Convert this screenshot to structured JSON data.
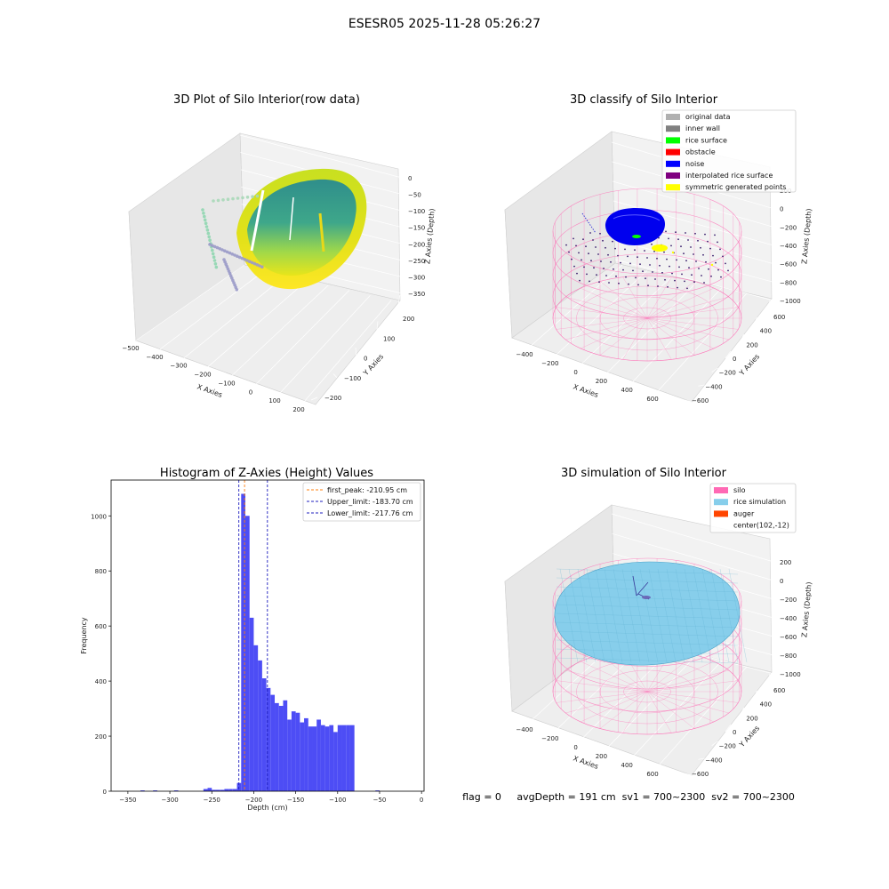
{
  "suptitle": "ESESR05 2025-11-28 05:26:27",
  "footer": "flag = 0     avgDepth = 191 cm  sv1 = 700~2300  sv2 = 700~2300",
  "colors": {
    "hist_bar": "#4d4df5",
    "first_peak": "#ff7f0e",
    "limit": "#1f1fbf",
    "silo_wire": "#ff69b4",
    "rice_sim": "#87ceeb",
    "auger": "#ff4500",
    "noise": "#0000ff",
    "rice_surface": "#00ff00",
    "obstacle": "#ff0000",
    "yellow": "#ffff00"
  },
  "p1": {
    "title": "3D Plot of Silo Interior(row data)",
    "xlabel": "X Axies",
    "ylabel": "Y Axies",
    "zlabel": "Z Axies (Depth)",
    "xticks": [
      "−500",
      "−400",
      "−300",
      "−200",
      "−100",
      "0",
      "100",
      "200"
    ],
    "yticks": [
      "200",
      "100",
      "0",
      "−100",
      "−200"
    ],
    "zticks": [
      "0",
      "−50",
      "−100",
      "−150",
      "−200",
      "−250",
      "−300",
      "−350"
    ]
  },
  "p2": {
    "title": "3D classify of Silo Interior",
    "xlabel": "X Axies",
    "ylabel": "Y Axies",
    "zlabel": "Z Axies (Depth)",
    "xticks": [
      "−400",
      "−200",
      "0",
      "200",
      "400",
      "600"
    ],
    "yticks": [
      "600",
      "400",
      "200",
      "0",
      "−200",
      "−400",
      "−600"
    ],
    "zticks": [
      "200",
      "0",
      "−200",
      "−400",
      "−600",
      "−800",
      "−1000"
    ],
    "legend": [
      {
        "label": "original data",
        "color": "#b0b0b0"
      },
      {
        "label": "inner wall",
        "color": "#808080"
      },
      {
        "label": "rice surface",
        "color": "#00ff00"
      },
      {
        "label": "obstacle",
        "color": "#ff0000"
      },
      {
        "label": "noise",
        "color": "#0000ff"
      },
      {
        "label": "interpolated rice surface",
        "color": "#800080"
      },
      {
        "label": "symmetric generated points",
        "color": "#ffff00"
      }
    ]
  },
  "p4": {
    "title": "3D simulation of Silo Interior",
    "xlabel": "X Axies",
    "ylabel": "Y Axies",
    "zlabel": "Z Axies (Depth)",
    "xticks": [
      "−400",
      "−200",
      "0",
      "200",
      "400",
      "600"
    ],
    "yticks": [
      "600",
      "400",
      "200",
      "0",
      "−200",
      "−400",
      "−600"
    ],
    "zticks": [
      "200",
      "0",
      "−200",
      "−400",
      "−600",
      "−800",
      "−1000"
    ],
    "legend": [
      {
        "label": "silo",
        "color": "#ff69b4"
      },
      {
        "label": "rice simulation",
        "color": "#87ceeb"
      },
      {
        "label": "auger",
        "color": "#ff4500"
      },
      {
        "label": "center(102,-12)",
        "color": ""
      }
    ]
  },
  "chart_data": [
    {
      "type": "scatter",
      "title": "3D Plot of Silo Interior(row data)",
      "xlabel": "X Axies",
      "ylabel": "Y Axies",
      "zlabel": "Z Axies (Depth)",
      "xlim": [
        -500,
        200
      ],
      "ylim": [
        -200,
        200
      ],
      "zlim": [
        -350,
        0
      ]
    },
    {
      "type": "scatter",
      "title": "3D classify of Silo Interior",
      "xlabel": "X Axies",
      "ylabel": "Y Axies",
      "zlabel": "Z Axies (Depth)",
      "xlim": [
        -400,
        600
      ],
      "ylim": [
        -600,
        600
      ],
      "zlim": [
        -1000,
        200
      ],
      "legend_loc": "upper right",
      "series": [
        {
          "name": "original data"
        },
        {
          "name": "inner wall"
        },
        {
          "name": "rice surface"
        },
        {
          "name": "obstacle"
        },
        {
          "name": "noise"
        },
        {
          "name": "interpolated rice surface"
        },
        {
          "name": "symmetric generated points"
        }
      ]
    },
    {
      "type": "bar",
      "title": "Histogram of Z-Axies (Height) Values",
      "xlabel": "Depth (cm)",
      "ylabel": "Frequency",
      "xlim": [
        -370,
        3
      ],
      "ylim": [
        0,
        1130
      ],
      "xticks": [
        -350,
        -300,
        -250,
        -200,
        -150,
        -100,
        -50,
        0
      ],
      "yticks": [
        0,
        200,
        400,
        600,
        800,
        1000
      ],
      "legend_loc": "upper right",
      "bin_edges": [
        -335,
        -330,
        -325,
        -320,
        -315,
        -310,
        -305,
        -300,
        -295,
        -290,
        -285,
        -280,
        -275,
        -270,
        -265,
        -260,
        -255,
        -250,
        -245,
        -240,
        -235,
        -230,
        -225,
        -220,
        -215,
        -210,
        -205,
        -200,
        -195,
        -190,
        -185,
        -180,
        -175,
        -170,
        -165,
        -160,
        -155,
        -150,
        -145,
        -140,
        -135,
        -130,
        -125,
        -120,
        -115,
        -110,
        -105,
        -100,
        -95,
        -90,
        -85,
        -80,
        -75,
        -70,
        -65,
        -60,
        -55,
        -50,
        -45,
        -40,
        -35,
        -30,
        -25,
        -20,
        -15,
        -10
      ],
      "values": [
        3,
        0,
        0,
        3,
        0,
        0,
        0,
        0,
        3,
        0,
        0,
        0,
        0,
        0,
        0,
        8,
        12,
        5,
        5,
        5,
        8,
        8,
        8,
        30,
        1080,
        1000,
        630,
        530,
        475,
        410,
        375,
        350,
        320,
        310,
        330,
        260,
        290,
        285,
        250,
        265,
        235,
        235,
        260,
        240,
        235,
        240,
        215,
        240,
        240,
        240,
        240,
        0,
        0,
        0,
        0,
        0,
        3,
        0,
        0,
        0,
        0,
        0,
        0,
        0,
        0
      ],
      "lines": [
        {
          "name": "first_peak: -210.95 cm",
          "x": -210.95,
          "color": "#ff7f0e"
        },
        {
          "name": "Upper_limit: -183.70 cm",
          "x": -183.7,
          "color": "#1f1fbf"
        },
        {
          "name": "Lower_limit: -217.76 cm",
          "x": -217.76,
          "color": "#1f1fbf"
        }
      ]
    },
    {
      "type": "scatter",
      "title": "3D simulation of Silo Interior",
      "xlabel": "X Axies",
      "ylabel": "Y Axies",
      "zlabel": "Z Axies (Depth)",
      "xlim": [
        -400,
        600
      ],
      "ylim": [
        -600,
        600
      ],
      "zlim": [
        -1000,
        200
      ],
      "legend_loc": "upper right",
      "series": [
        {
          "name": "silo"
        },
        {
          "name": "rice simulation"
        },
        {
          "name": "auger"
        },
        {
          "name": "center(102,-12)"
        }
      ]
    }
  ]
}
